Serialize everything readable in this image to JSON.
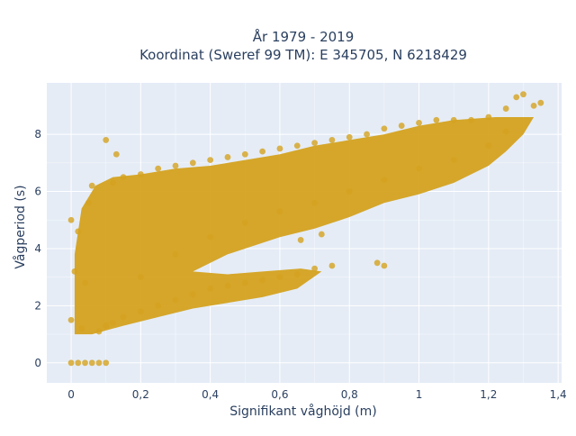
{
  "chart_data": {
    "type": "scatter",
    "title_line1": "År 1979 - 2019",
    "title_line2": "Koordinat (Sweref 99 TM): E 345705, N 6218429",
    "xlabel": "Signifikant våghöjd (m)",
    "ylabel": "Vågperiod (s)",
    "xlim": [
      -0.07,
      1.41
    ],
    "ylim": [
      -0.7,
      9.8
    ],
    "x_ticks": [
      {
        "value": 0,
        "label": "0"
      },
      {
        "value": 0.2,
        "label": "0,2"
      },
      {
        "value": 0.4,
        "label": "0,4"
      },
      {
        "value": 0.6,
        "label": "0,6"
      },
      {
        "value": 0.8,
        "label": "0,8"
      },
      {
        "value": 1.0,
        "label": "1"
      },
      {
        "value": 1.2,
        "label": "1,2"
      },
      {
        "value": 1.4,
        "label": "1,4"
      }
    ],
    "y_ticks": [
      {
        "value": 0,
        "label": "0"
      },
      {
        "value": 2,
        "label": "2"
      },
      {
        "value": 4,
        "label": "4"
      },
      {
        "value": 6,
        "label": "6"
      },
      {
        "value": 8,
        "label": "8"
      }
    ],
    "grid": true,
    "colors": {
      "plot_background": "#e5ecf6",
      "grid": "#ffffff",
      "marker": "#d4a21f"
    },
    "series": [
      {
        "points": [
          [
            0.0,
            0.0
          ],
          [
            0.02,
            0.0
          ],
          [
            0.04,
            0.0
          ],
          [
            0.06,
            0.0
          ],
          [
            0.08,
            0.0
          ],
          [
            0.1,
            0.0
          ],
          [
            0.0,
            1.5
          ],
          [
            0.01,
            3.2
          ],
          [
            0.0,
            5.0
          ],
          [
            0.02,
            4.6
          ],
          [
            0.03,
            1.2
          ],
          [
            0.04,
            2.8
          ],
          [
            0.05,
            5.6
          ],
          [
            0.06,
            6.2
          ],
          [
            0.08,
            1.1
          ],
          [
            0.1,
            1.3
          ],
          [
            0.12,
            1.4
          ],
          [
            0.15,
            1.6
          ],
          [
            0.2,
            1.8
          ],
          [
            0.25,
            2.0
          ],
          [
            0.3,
            2.2
          ],
          [
            0.35,
            2.4
          ],
          [
            0.4,
            2.6
          ],
          [
            0.45,
            2.7
          ],
          [
            0.5,
            2.8
          ],
          [
            0.55,
            2.9
          ],
          [
            0.6,
            3.0
          ],
          [
            0.65,
            3.1
          ],
          [
            0.7,
            3.3
          ],
          [
            0.75,
            3.4
          ],
          [
            0.12,
            6.3
          ],
          [
            0.15,
            6.5
          ],
          [
            0.2,
            6.6
          ],
          [
            0.25,
            6.8
          ],
          [
            0.3,
            6.9
          ],
          [
            0.35,
            7.0
          ],
          [
            0.4,
            7.1
          ],
          [
            0.45,
            7.2
          ],
          [
            0.5,
            7.3
          ],
          [
            0.55,
            7.4
          ],
          [
            0.6,
            7.5
          ],
          [
            0.65,
            7.6
          ],
          [
            0.7,
            7.7
          ],
          [
            0.75,
            7.8
          ],
          [
            0.8,
            7.9
          ],
          [
            0.85,
            8.0
          ],
          [
            0.9,
            8.2
          ],
          [
            0.95,
            8.3
          ],
          [
            1.0,
            8.4
          ],
          [
            1.05,
            8.5
          ],
          [
            1.1,
            8.5
          ],
          [
            1.15,
            8.5
          ],
          [
            1.2,
            8.6
          ],
          [
            1.25,
            8.9
          ],
          [
            1.28,
            9.3
          ],
          [
            1.3,
            9.4
          ],
          [
            1.33,
            9.0
          ],
          [
            1.35,
            9.1
          ],
          [
            0.1,
            7.8
          ],
          [
            0.13,
            7.3
          ],
          [
            0.2,
            3.0
          ],
          [
            0.3,
            3.8
          ],
          [
            0.4,
            4.4
          ],
          [
            0.5,
            4.9
          ],
          [
            0.6,
            5.3
          ],
          [
            0.7,
            5.6
          ],
          [
            0.8,
            6.0
          ],
          [
            0.9,
            6.4
          ],
          [
            1.0,
            6.8
          ],
          [
            1.1,
            7.1
          ],
          [
            1.2,
            7.6
          ],
          [
            1.25,
            8.1
          ],
          [
            0.88,
            3.5
          ],
          [
            0.9,
            3.4
          ],
          [
            0.66,
            4.3
          ],
          [
            0.72,
            4.5
          ]
        ]
      }
    ]
  }
}
